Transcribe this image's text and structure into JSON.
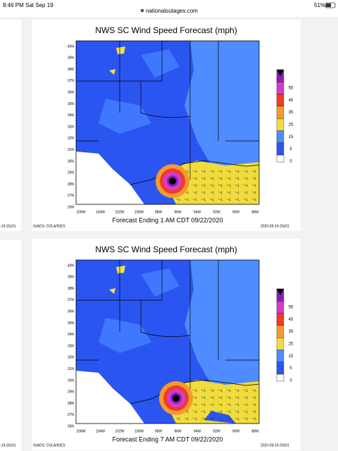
{
  "status_bar": {
    "time": "8:46 PM",
    "date": "Sat Sep 19",
    "url": "nationaloutages.com",
    "battery": "51%"
  },
  "edge_labels": [
    "-19-20z01",
    "-19-20z01"
  ],
  "panels": [
    {
      "title": "NWS SC Wind Speed Forecast (mph)",
      "latitudes": [
        "40N",
        "39N",
        "38N",
        "37N",
        "36N",
        "35N",
        "34N",
        "33N",
        "32N",
        "31N",
        "30N",
        "29N",
        "28N",
        "27N",
        "26N"
      ],
      "longitudes": [
        "106W",
        "104W",
        "102W",
        "100W",
        "98W",
        "96W",
        "94W",
        "92W",
        "90W",
        "88W"
      ],
      "colorbar": [
        "55",
        "45",
        "35",
        "25",
        "15",
        "5",
        "0"
      ],
      "caption": "Forecast Ending 1 AM CDT 09/22/2020",
      "credit": "GrADS: COLA/IGES",
      "timestamp": "2020-09-19-20z01"
    },
    {
      "title": "NWS SC Wind Speed Forecast (mph)",
      "latitudes": [
        "40N",
        "39N",
        "38N",
        "37N",
        "36N",
        "35N",
        "34N",
        "33N",
        "32N",
        "31N",
        "30N",
        "29N",
        "28N",
        "27N",
        "26N"
      ],
      "longitudes": [
        "106W",
        "104W",
        "102W",
        "100W",
        "98W",
        "96W",
        "94W",
        "92W",
        "90W",
        "88W"
      ],
      "colorbar": [
        "55",
        "45",
        "35",
        "25",
        "15",
        "5",
        "0"
      ],
      "caption": "Forecast Ending 7 AM CDT 09/22/2020",
      "credit": "GrADS: COLA/IGES",
      "timestamp": "2020-09-19-20z01"
    }
  ]
}
